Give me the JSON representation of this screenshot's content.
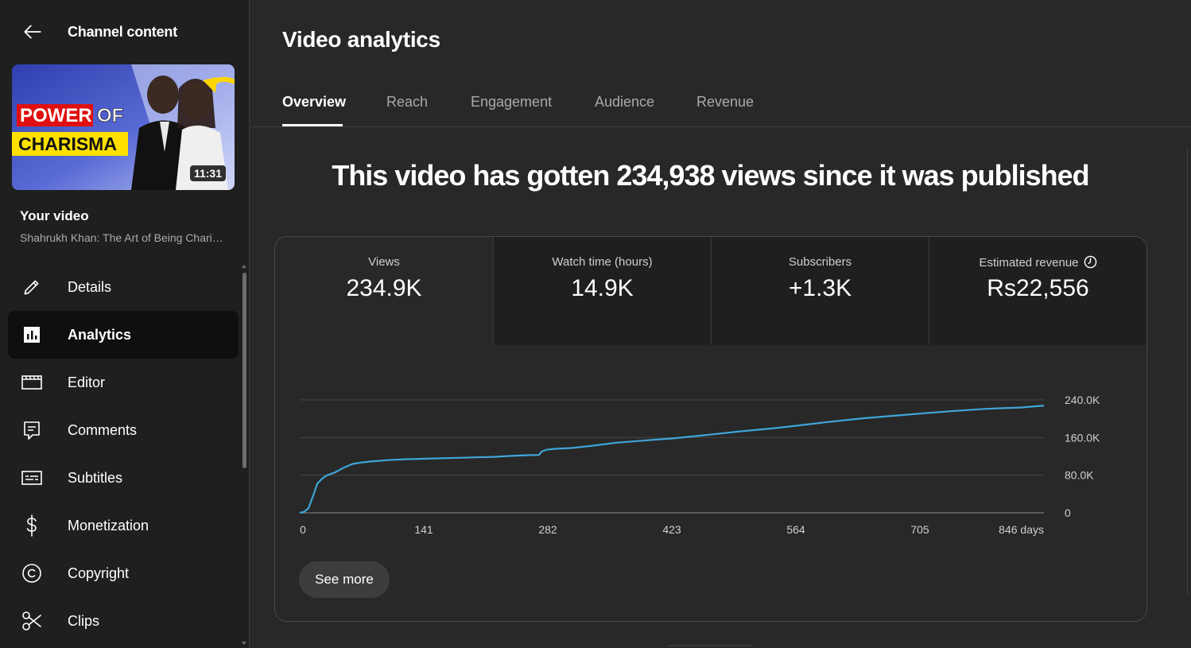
{
  "sidebar": {
    "header_title": "Channel content",
    "thumbnail": {
      "text_line1_a": "POWER",
      "text_line1_b": "OF",
      "text_line2": "CHARISMA",
      "duration": "11:31"
    },
    "your_video_label": "Your video",
    "video_title": "Shahrukh Khan: The Art of Being Charismatic",
    "nav": [
      {
        "label": "Details",
        "icon": "pencil-icon"
      },
      {
        "label": "Analytics",
        "icon": "analytics-icon",
        "active": true
      },
      {
        "label": "Editor",
        "icon": "editor-icon"
      },
      {
        "label": "Comments",
        "icon": "comments-icon"
      },
      {
        "label": "Subtitles",
        "icon": "subtitles-icon"
      },
      {
        "label": "Monetization",
        "icon": "dollar-icon"
      },
      {
        "label": "Copyright",
        "icon": "copyright-icon"
      },
      {
        "label": "Clips",
        "icon": "scissors-icon"
      }
    ]
  },
  "main": {
    "title": "Video analytics",
    "tabs": [
      {
        "label": "Overview",
        "active": true
      },
      {
        "label": "Reach"
      },
      {
        "label": "Engagement"
      },
      {
        "label": "Audience"
      },
      {
        "label": "Revenue"
      }
    ],
    "headline": "This video has gotten 234,938 views since it was published",
    "metrics": [
      {
        "label": "Views",
        "value": "234.9K"
      },
      {
        "label": "Watch time (hours)",
        "value": "14.9K"
      },
      {
        "label": "Subscribers",
        "value": "+1.3K"
      },
      {
        "label": "Estimated revenue",
        "value": "Rs22,556",
        "icon": "clock-icon"
      }
    ],
    "see_more_label": "See more"
  },
  "colors": {
    "background": "#282828",
    "sidebar": "#1f1f1f",
    "accent_line": "#3ea6d9",
    "muted_text": "#aaaaaa"
  },
  "chart_data": {
    "type": "line",
    "series": [
      {
        "x": [
          0,
          5,
          10,
          15,
          20,
          25,
          30,
          40,
          50,
          60,
          70,
          80,
          100,
          120,
          141,
          160,
          180,
          200,
          220,
          240,
          260,
          272,
          275,
          280,
          290,
          310,
          330,
          360,
          400,
          423,
          460,
          500,
          540,
          564,
          600,
          640,
          680,
          705,
          740,
          780,
          820,
          846
        ],
        "y": [
          0,
          2000,
          10000,
          35000,
          62000,
          72000,
          79000,
          86000,
          96000,
          104000,
          107000,
          109000,
          112000,
          114000,
          115000,
          116000,
          117000,
          118000,
          119000,
          121000,
          122500,
          123000,
          130000,
          134000,
          136000,
          138000,
          142000,
          149000,
          155000,
          158000,
          165000,
          173000,
          180000,
          185000,
          193000,
          201000,
          207000,
          211000,
          216000,
          221000,
          224000,
          228000
        ]
      }
    ],
    "xticks": [
      "0",
      "141",
      "282",
      "423",
      "564",
      "705",
      "846 days"
    ],
    "xtick_values": [
      0,
      141,
      282,
      423,
      564,
      705,
      846
    ],
    "yticks": [
      "0",
      "80.0K",
      "160.0K",
      "240.0K"
    ],
    "ytick_values": [
      0,
      80000,
      160000,
      240000
    ],
    "xlim": [
      0,
      846
    ],
    "ylim": [
      0,
      240000
    ],
    "grid": true,
    "legend": "none"
  }
}
